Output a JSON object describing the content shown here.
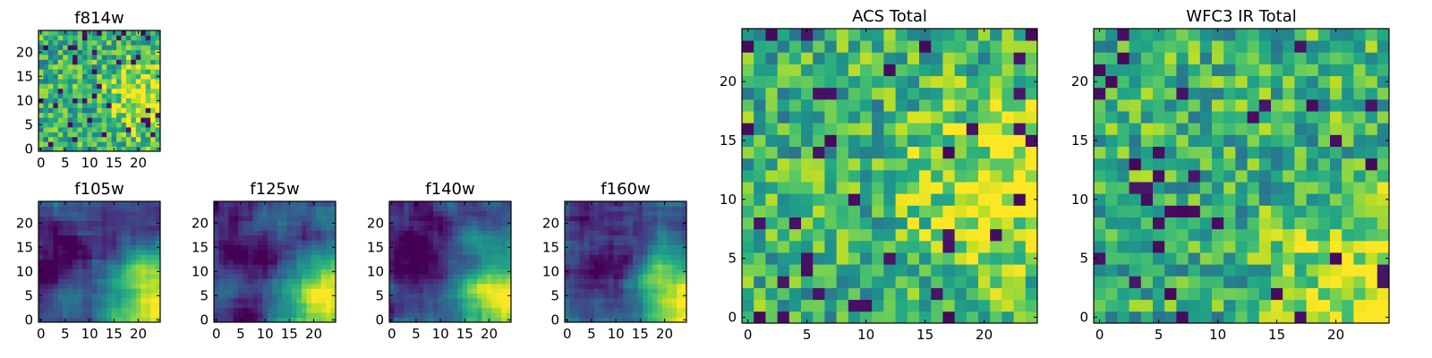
{
  "figure": {
    "description_free": true
  },
  "chart_data": [
    {
      "id": "f814w",
      "type": "heatmap",
      "title": "f814w",
      "colormap": "viridis",
      "xlim": [
        -0.5,
        24.5
      ],
      "ylim": [
        -0.5,
        24.5
      ],
      "xticks": [
        0,
        5,
        10,
        15,
        20
      ],
      "yticks": [
        0,
        5,
        10,
        15,
        20
      ],
      "grid_size": [
        25,
        25
      ],
      "pattern": {
        "style": "noise",
        "hot_corner": "right-middle",
        "seed": 814
      }
    },
    {
      "id": "f105w",
      "type": "heatmap",
      "title": "f105w",
      "colormap": "viridis",
      "xlim": [
        -0.5,
        24.5
      ],
      "ylim": [
        -0.5,
        24.5
      ],
      "xticks": [
        0,
        5,
        10,
        15,
        20
      ],
      "yticks": [
        0,
        5,
        10,
        15,
        20
      ],
      "grid_size": [
        25,
        25
      ],
      "pattern": {
        "style": "smooth",
        "hot_corner": "bottom-right",
        "seed": 105
      }
    },
    {
      "id": "f125w",
      "type": "heatmap",
      "title": "f125w",
      "colormap": "viridis",
      "xlim": [
        -0.5,
        24.5
      ],
      "ylim": [
        -0.5,
        24.5
      ],
      "xticks": [
        0,
        5,
        10,
        15,
        20
      ],
      "yticks": [
        0,
        5,
        10,
        15,
        20
      ],
      "grid_size": [
        25,
        25
      ],
      "pattern": {
        "style": "smooth",
        "hot_corner": "bottom-right",
        "seed": 125
      }
    },
    {
      "id": "f140w",
      "type": "heatmap",
      "title": "f140w",
      "colormap": "viridis",
      "xlim": [
        -0.5,
        24.5
      ],
      "ylim": [
        -0.5,
        24.5
      ],
      "xticks": [
        0,
        5,
        10,
        15,
        20
      ],
      "yticks": [
        0,
        5,
        10,
        15,
        20
      ],
      "grid_size": [
        25,
        25
      ],
      "pattern": {
        "style": "smooth",
        "hot_corner": "bottom-right",
        "seed": 140
      }
    },
    {
      "id": "f160w",
      "type": "heatmap",
      "title": "f160w",
      "colormap": "viridis",
      "xlim": [
        -0.5,
        24.5
      ],
      "ylim": [
        -0.5,
        24.5
      ],
      "xticks": [
        0,
        5,
        10,
        15,
        20
      ],
      "yticks": [
        0,
        5,
        10,
        15,
        20
      ],
      "grid_size": [
        25,
        25
      ],
      "pattern": {
        "style": "smooth",
        "hot_corner": "bottom-right",
        "seed": 160
      }
    },
    {
      "id": "acs-total",
      "type": "heatmap",
      "title": "ACS Total",
      "colormap": "viridis",
      "xlim": [
        -0.5,
        24.5
      ],
      "ylim": [
        -0.5,
        24.5
      ],
      "xticks": [
        0,
        5,
        10,
        15,
        20
      ],
      "yticks": [
        0,
        5,
        10,
        15,
        20
      ],
      "grid_size": [
        25,
        25
      ],
      "pattern": {
        "style": "noise",
        "hot_corner": "right-middle",
        "seed": 901
      }
    },
    {
      "id": "wfc3-ir-total",
      "type": "heatmap",
      "title": "WFC3 IR Total",
      "colormap": "viridis",
      "xlim": [
        -0.5,
        24.5
      ],
      "ylim": [
        -0.5,
        24.5
      ],
      "xticks": [
        0,
        5,
        10,
        15,
        20
      ],
      "yticks": [
        0,
        5,
        10,
        15,
        20
      ],
      "grid_size": [
        25,
        25
      ],
      "pattern": {
        "style": "noise",
        "hot_corner": "bottom-right",
        "seed": 902
      }
    }
  ]
}
